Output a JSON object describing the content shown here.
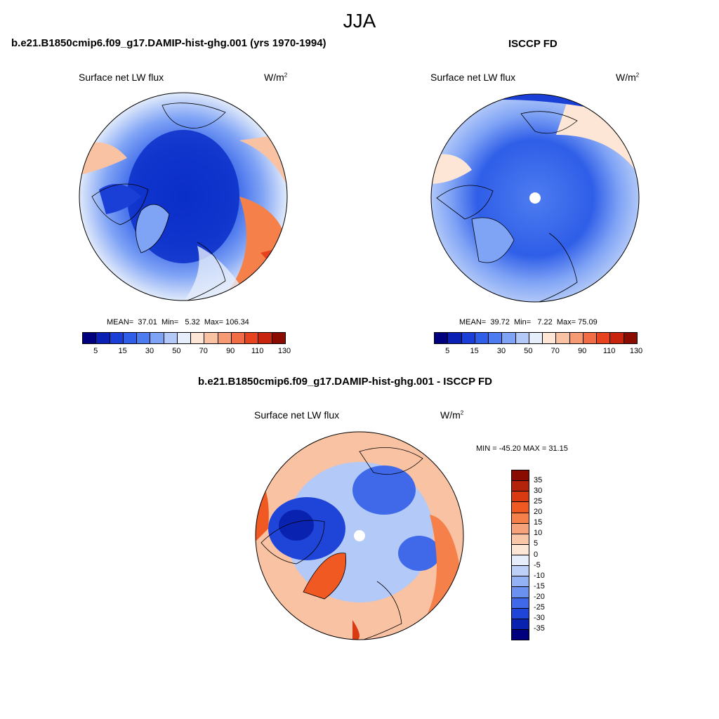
{
  "main_title": "JJA",
  "panels": [
    {
      "header": "b.e21.B1850cmip6.f09_g17.DAMIP-hist-ghg.001 (yrs 1970-1994)",
      "variable": "Surface net LW flux",
      "units": "W/m",
      "units_exp": "2",
      "mean_label": "MEAN=",
      "mean": "37.01",
      "min_label": "Min=",
      "min": "5.32",
      "max_label": "Max=",
      "max": "106.34",
      "colorbar_ticks": [
        "5",
        "15",
        "30",
        "50",
        "70",
        "90",
        "110",
        "130"
      ]
    },
    {
      "header": "ISCCP FD",
      "variable": "Surface net LW flux",
      "units": "W/m",
      "units_exp": "2",
      "mean_label": "MEAN=",
      "mean": "39.72",
      "min_label": "Min=",
      "min": "7.22",
      "max_label": "Max=",
      "max": "75.09",
      "colorbar_ticks": [
        "5",
        "15",
        "30",
        "50",
        "70",
        "90",
        "110",
        "130"
      ]
    }
  ],
  "diff_panel": {
    "header": "b.e21.B1850cmip6.f09_g17.DAMIP-hist-ghg.001 - ISCCP FD",
    "variable": "Surface net LW flux",
    "units": "W/m",
    "units_exp": "2",
    "minmax": "MIN = -45.20 MAX =  31.15",
    "colorbar_ticks": [
      "35",
      "30",
      "25",
      "20",
      "15",
      "10",
      "5",
      "0",
      "-5",
      "-10",
      "-15",
      "-20",
      "-25",
      "-30",
      "-35"
    ]
  },
  "colors": {
    "abs_scale": [
      "#00007f",
      "#0a1fb4",
      "#1a3fd6",
      "#2f5ee8",
      "#4d7cf0",
      "#7fa3f5",
      "#b3c9f8",
      "#e6eefb",
      "#fde6d5",
      "#f9c2a3",
      "#f59a72",
      "#f26d46",
      "#e8431f",
      "#c9250e",
      "#8a0b00"
    ],
    "diff_scale": [
      "#8a0b00",
      "#b3220b",
      "#d93a12",
      "#f05a22",
      "#f5804a",
      "#f7a27a",
      "#f9c6a8",
      "#fde6d5",
      "#e6eefb",
      "#bcd0f8",
      "#93b2f5",
      "#6a90f0",
      "#3f69e8",
      "#1f45d8",
      "#0a22b0",
      "#00007f"
    ],
    "ocean_bg": "#3a5fe0",
    "coast": "#000000"
  }
}
